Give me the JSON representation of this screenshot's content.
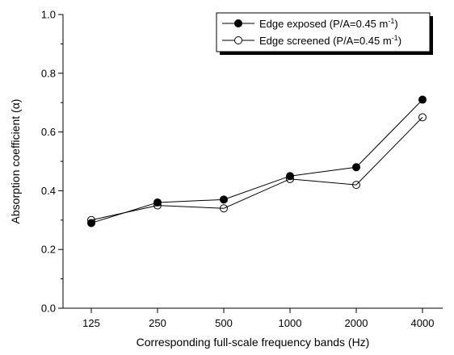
{
  "chart_data": {
    "type": "line",
    "categories": [
      "125",
      "250",
      "500",
      "1000",
      "2000",
      "4000"
    ],
    "xlabel": "Corresponding full-scale frequency bands (Hz)",
    "ylabel": "Absorption coefficient (α)",
    "ylim": [
      0.0,
      1.0
    ],
    "yticks": [
      "0.0",
      "0.2",
      "0.4",
      "0.6",
      "0.8",
      "1.0"
    ],
    "grid": false,
    "legend_position": "top-right",
    "series": [
      {
        "name": "Edge exposed (P/A=0.45 m-1)",
        "label_main": "Edge exposed (P/A=0.45 m",
        "label_sup": "-1",
        "label_end": ")",
        "marker": "filled-circle",
        "values": [
          0.29,
          0.36,
          0.37,
          0.45,
          0.48,
          0.71
        ]
      },
      {
        "name": "Edge screened (P/A=0.45 m-1)",
        "label_main": "Edge screened (P/A=0.45 m",
        "label_sup": "-1",
        "label_end": ")",
        "marker": "open-circle",
        "values": [
          0.3,
          0.35,
          0.34,
          0.44,
          0.42,
          0.65
        ]
      }
    ],
    "colors": {
      "line": "#000000",
      "background": "#ffffff"
    }
  }
}
